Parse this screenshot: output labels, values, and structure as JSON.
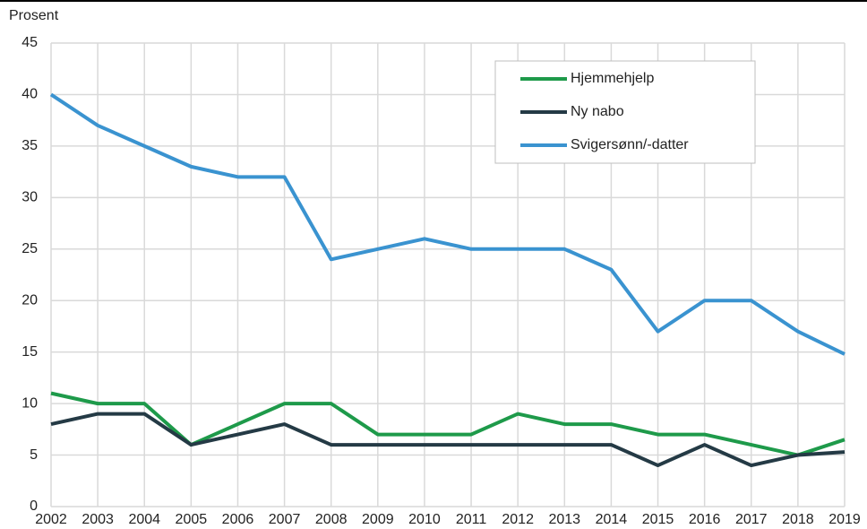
{
  "chart_data": {
    "type": "line",
    "y_label": "Prosent",
    "categories": [
      "2002",
      "2003",
      "2004",
      "2005",
      "2006",
      "2007",
      "2008",
      "2009",
      "2010",
      "2011",
      "2012",
      "2013",
      "2014",
      "2015",
      "2016",
      "2017",
      "2018",
      "2019"
    ],
    "series": [
      {
        "name": "Hjemmehjelp",
        "color": "#1e9a4a",
        "values": [
          11,
          10,
          10,
          6,
          8,
          10,
          10,
          7,
          7,
          7,
          9,
          8,
          8,
          7,
          7,
          6,
          5,
          6.5
        ]
      },
      {
        "name": "Ny nabo",
        "color": "#243a45",
        "values": [
          8,
          9,
          9,
          6,
          7,
          8,
          6,
          6,
          6,
          6,
          6,
          6,
          6,
          4,
          6,
          4,
          5,
          5.3
        ]
      },
      {
        "name": "Svigersønn/-datter",
        "color": "#3a93d0",
        "values": [
          40,
          37,
          35,
          33,
          32,
          32,
          24,
          25,
          26,
          25,
          25,
          25,
          23,
          17,
          20,
          20,
          17,
          14.8
        ]
      }
    ],
    "ylim": [
      0,
      45
    ],
    "yticks": [
      0,
      5,
      10,
      15,
      20,
      25,
      30,
      35,
      40,
      45
    ],
    "grid": true,
    "legend": "upper right"
  }
}
